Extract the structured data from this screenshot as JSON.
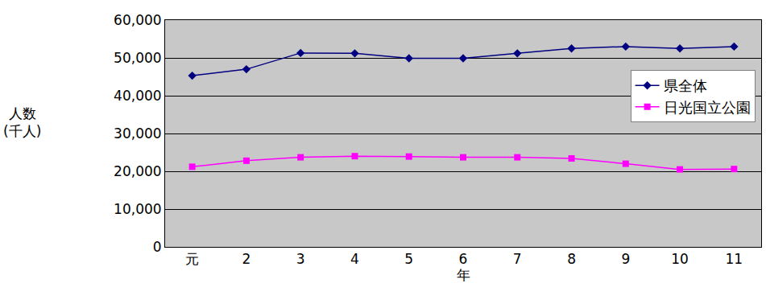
{
  "chart_data": {
    "type": "line",
    "x_label": "年",
    "y_label": "人数\n(千人)",
    "categories": [
      "元",
      "2",
      "3",
      "4",
      "5",
      "6",
      "7",
      "8",
      "9",
      "10",
      "11"
    ],
    "series": [
      {
        "name": "県全体",
        "color": "#000080",
        "marker": "diamond",
        "values": [
          45300,
          47000,
          51300,
          51200,
          49900,
          49900,
          51200,
          52500,
          53000,
          52500,
          53000
        ]
      },
      {
        "name": "日光国立公園",
        "color": "#ff00ff",
        "marker": "square",
        "values": [
          21200,
          22800,
          23700,
          24000,
          23900,
          23700,
          23700,
          23400,
          22000,
          20500,
          20600
        ]
      }
    ],
    "ylim": [
      0,
      60000
    ],
    "yticks": [
      0,
      {
        "value": 10000,
        "label": "10,000"
      },
      {
        "value": 20000,
        "label": "20,000"
      },
      {
        "value": 30000,
        "label": "30,000"
      },
      {
        "value": 40000,
        "label": "40,000"
      },
      {
        "value": 50000,
        "label": "50,000"
      },
      {
        "value": 60000,
        "label": "60,000"
      }
    ],
    "grid": true,
    "legend": "upper right"
  }
}
